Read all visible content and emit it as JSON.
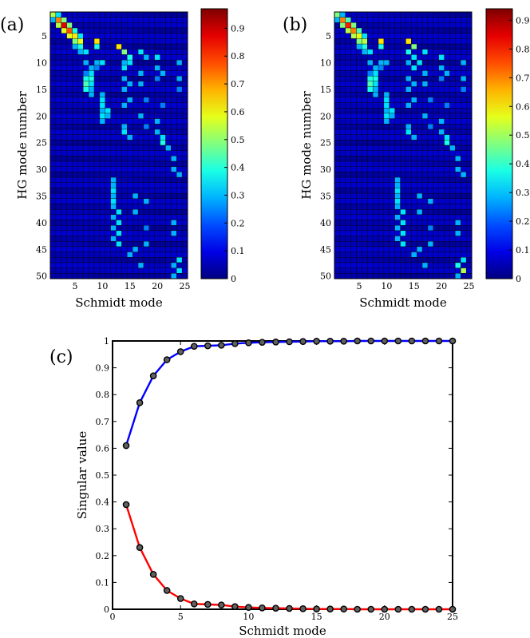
{
  "panels": {
    "a": "(a)",
    "b": "(b)",
    "c": "(c)"
  },
  "chart_data": [
    {
      "type": "heatmap",
      "panel": "(a)",
      "xlabel": "Schmidt mode",
      "ylabel": "HG mode number",
      "x_ticks": [
        5,
        10,
        15,
        20,
        25
      ],
      "y_ticks": [
        5,
        10,
        15,
        20,
        25,
        30,
        35,
        40,
        45,
        50
      ],
      "rows": 50,
      "cols": 25,
      "colormap": "jet",
      "colorbar": {
        "min": 0,
        "max": 0.97,
        "ticks": [
          0,
          0.1,
          0.2,
          0.3,
          0.4,
          0.5,
          0.6,
          0.7,
          0.8,
          0.9
        ]
      },
      "cells": [
        [
          1,
          1,
          0.55
        ],
        [
          1,
          2,
          0.35
        ],
        [
          2,
          1,
          0.3
        ],
        [
          2,
          2,
          0.75
        ],
        [
          2,
          3,
          0.5
        ],
        [
          3,
          2,
          0.55
        ],
        [
          3,
          3,
          0.9
        ],
        [
          3,
          4,
          0.5
        ],
        [
          4,
          3,
          0.6
        ],
        [
          4,
          4,
          0.8
        ],
        [
          4,
          5,
          0.4
        ],
        [
          5,
          4,
          0.6
        ],
        [
          5,
          5,
          0.65
        ],
        [
          5,
          6,
          0.35
        ],
        [
          6,
          5,
          0.5
        ],
        [
          6,
          6,
          0.6
        ],
        [
          7,
          5,
          0.3
        ],
        [
          7,
          6,
          0.4
        ],
        [
          8,
          6,
          0.3
        ],
        [
          8,
          7,
          0.35
        ],
        [
          6,
          9,
          0.65
        ],
        [
          7,
          9,
          0.4
        ],
        [
          7,
          13,
          0.65
        ],
        [
          8,
          14,
          0.5
        ],
        [
          8,
          17,
          0.35
        ],
        [
          9,
          15,
          0.4
        ],
        [
          9,
          18,
          0.3
        ],
        [
          9,
          20,
          0.35
        ],
        [
          10,
          7,
          0.3
        ],
        [
          10,
          9,
          0.3
        ],
        [
          10,
          10,
          0.35
        ],
        [
          10,
          14,
          0.3
        ],
        [
          10,
          15,
          0.35
        ],
        [
          10,
          24,
          0.3
        ],
        [
          11,
          8,
          0.3
        ],
        [
          11,
          9,
          0.25
        ],
        [
          11,
          14,
          0.35
        ],
        [
          11,
          20,
          0.3
        ],
        [
          12,
          7,
          0.25
        ],
        [
          12,
          8,
          0.35
        ],
        [
          12,
          17,
          0.3
        ],
        [
          12,
          21,
          0.3
        ],
        [
          13,
          7,
          0.4
        ],
        [
          13,
          8,
          0.4
        ],
        [
          13,
          14,
          0.3
        ],
        [
          13,
          20,
          0.25
        ],
        [
          13,
          24,
          0.3
        ],
        [
          14,
          7,
          0.45
        ],
        [
          14,
          8,
          0.35
        ],
        [
          14,
          15,
          0.3
        ],
        [
          14,
          17,
          0.3
        ],
        [
          15,
          7,
          0.4
        ],
        [
          15,
          8,
          0.3
        ],
        [
          15,
          14,
          0.3
        ],
        [
          15,
          24,
          0.25
        ],
        [
          16,
          8,
          0.3
        ],
        [
          16,
          10,
          0.3
        ],
        [
          17,
          10,
          0.35
        ],
        [
          17,
          15,
          0.3
        ],
        [
          17,
          18,
          0.25
        ],
        [
          18,
          10,
          0.35
        ],
        [
          18,
          14,
          0.3
        ],
        [
          18,
          21,
          0.25
        ],
        [
          19,
          10,
          0.3
        ],
        [
          19,
          11,
          0.35
        ],
        [
          20,
          10,
          0.35
        ],
        [
          20,
          11,
          0.3
        ],
        [
          20,
          17,
          0.3
        ],
        [
          21,
          10,
          0.3
        ],
        [
          21,
          20,
          0.3
        ],
        [
          22,
          14,
          0.3
        ],
        [
          22,
          18,
          0.25
        ],
        [
          23,
          14,
          0.35
        ],
        [
          23,
          20,
          0.3
        ],
        [
          24,
          15,
          0.3
        ],
        [
          24,
          21,
          0.35
        ],
        [
          25,
          21,
          0.4
        ],
        [
          26,
          22,
          0.3
        ],
        [
          28,
          23,
          0.3
        ],
        [
          30,
          23,
          0.3
        ],
        [
          31,
          24,
          0.3
        ],
        [
          32,
          12,
          0.3
        ],
        [
          33,
          12,
          0.3
        ],
        [
          34,
          12,
          0.35
        ],
        [
          35,
          12,
          0.3
        ],
        [
          35,
          16,
          0.3
        ],
        [
          36,
          12,
          0.35
        ],
        [
          36,
          18,
          0.3
        ],
        [
          37,
          12,
          0.3
        ],
        [
          38,
          13,
          0.35
        ],
        [
          38,
          16,
          0.3
        ],
        [
          39,
          12,
          0.3
        ],
        [
          40,
          13,
          0.35
        ],
        [
          40,
          23,
          0.3
        ],
        [
          41,
          12,
          0.3
        ],
        [
          41,
          18,
          0.25
        ],
        [
          42,
          13,
          0.35
        ],
        [
          42,
          23,
          0.3
        ],
        [
          43,
          12,
          0.3
        ],
        [
          44,
          13,
          0.35
        ],
        [
          44,
          18,
          0.3
        ],
        [
          45,
          16,
          0.3
        ],
        [
          46,
          15,
          0.3
        ],
        [
          47,
          24,
          0.35
        ],
        [
          48,
          17,
          0.3
        ],
        [
          48,
          23,
          0.3
        ],
        [
          49,
          24,
          0.35
        ],
        [
          50,
          23,
          0.3
        ]
      ]
    },
    {
      "type": "heatmap",
      "panel": "(b)",
      "xlabel": "Schmidt mode",
      "ylabel": "HG mode number",
      "x_ticks": [
        5,
        10,
        15,
        20,
        25
      ],
      "y_ticks": [
        5,
        10,
        15,
        20,
        25,
        30,
        35,
        40,
        45,
        50
      ],
      "rows": 50,
      "cols": 25,
      "colormap": "jet",
      "colorbar": {
        "min": 0,
        "max": 0.94,
        "ticks": [
          0,
          0.1,
          0.2,
          0.3,
          0.4,
          0.5,
          0.6,
          0.7,
          0.8,
          0.9
        ]
      },
      "cells": [
        [
          1,
          1,
          0.5
        ],
        [
          1,
          2,
          0.3
        ],
        [
          2,
          1,
          0.3
        ],
        [
          2,
          2,
          0.75
        ],
        [
          2,
          3,
          0.45
        ],
        [
          3,
          2,
          0.5
        ],
        [
          3,
          3,
          0.85
        ],
        [
          3,
          4,
          0.5
        ],
        [
          4,
          3,
          0.55
        ],
        [
          4,
          4,
          0.75
        ],
        [
          4,
          5,
          0.45
        ],
        [
          5,
          4,
          0.55
        ],
        [
          5,
          5,
          0.6
        ],
        [
          5,
          6,
          0.35
        ],
        [
          6,
          5,
          0.5
        ],
        [
          6,
          6,
          0.55
        ],
        [
          7,
          5,
          0.3
        ],
        [
          7,
          6,
          0.4
        ],
        [
          8,
          6,
          0.3
        ],
        [
          8,
          7,
          0.35
        ],
        [
          6,
          9,
          0.65
        ],
        [
          7,
          9,
          0.4
        ],
        [
          6,
          14,
          0.65
        ],
        [
          7,
          15,
          0.5
        ],
        [
          8,
          14,
          0.4
        ],
        [
          8,
          17,
          0.35
        ],
        [
          9,
          15,
          0.35
        ],
        [
          9,
          20,
          0.35
        ],
        [
          10,
          7,
          0.3
        ],
        [
          10,
          9,
          0.3
        ],
        [
          10,
          10,
          0.3
        ],
        [
          10,
          14,
          0.3
        ],
        [
          10,
          16,
          0.35
        ],
        [
          10,
          24,
          0.3
        ],
        [
          11,
          8,
          0.3
        ],
        [
          11,
          9,
          0.25
        ],
        [
          11,
          15,
          0.35
        ],
        [
          11,
          20,
          0.3
        ],
        [
          12,
          7,
          0.25
        ],
        [
          12,
          8,
          0.35
        ],
        [
          12,
          17,
          0.3
        ],
        [
          12,
          21,
          0.3
        ],
        [
          13,
          7,
          0.4
        ],
        [
          13,
          8,
          0.4
        ],
        [
          13,
          14,
          0.3
        ],
        [
          13,
          20,
          0.25
        ],
        [
          13,
          24,
          0.3
        ],
        [
          14,
          7,
          0.45
        ],
        [
          14,
          8,
          0.35
        ],
        [
          14,
          15,
          0.3
        ],
        [
          14,
          17,
          0.3
        ],
        [
          15,
          7,
          0.4
        ],
        [
          15,
          8,
          0.3
        ],
        [
          15,
          14,
          0.3
        ],
        [
          15,
          24,
          0.25
        ],
        [
          16,
          8,
          0.3
        ],
        [
          16,
          10,
          0.3
        ],
        [
          17,
          10,
          0.35
        ],
        [
          17,
          15,
          0.3
        ],
        [
          17,
          18,
          0.25
        ],
        [
          18,
          10,
          0.35
        ],
        [
          18,
          14,
          0.3
        ],
        [
          18,
          21,
          0.25
        ],
        [
          19,
          10,
          0.3
        ],
        [
          19,
          11,
          0.35
        ],
        [
          20,
          10,
          0.35
        ],
        [
          20,
          11,
          0.3
        ],
        [
          20,
          17,
          0.3
        ],
        [
          21,
          10,
          0.3
        ],
        [
          21,
          20,
          0.3
        ],
        [
          22,
          14,
          0.3
        ],
        [
          22,
          18,
          0.25
        ],
        [
          23,
          14,
          0.35
        ],
        [
          23,
          20,
          0.3
        ],
        [
          24,
          15,
          0.3
        ],
        [
          24,
          21,
          0.35
        ],
        [
          25,
          21,
          0.4
        ],
        [
          26,
          22,
          0.3
        ],
        [
          28,
          23,
          0.3
        ],
        [
          30,
          23,
          0.3
        ],
        [
          31,
          24,
          0.3
        ],
        [
          32,
          12,
          0.3
        ],
        [
          33,
          12,
          0.3
        ],
        [
          34,
          12,
          0.35
        ],
        [
          35,
          12,
          0.3
        ],
        [
          35,
          16,
          0.3
        ],
        [
          36,
          12,
          0.35
        ],
        [
          36,
          18,
          0.3
        ],
        [
          37,
          12,
          0.3
        ],
        [
          38,
          13,
          0.35
        ],
        [
          38,
          16,
          0.3
        ],
        [
          39,
          12,
          0.3
        ],
        [
          40,
          13,
          0.35
        ],
        [
          40,
          23,
          0.3
        ],
        [
          41,
          12,
          0.3
        ],
        [
          41,
          18,
          0.25
        ],
        [
          42,
          13,
          0.35
        ],
        [
          42,
          23,
          0.3
        ],
        [
          43,
          12,
          0.3
        ],
        [
          44,
          13,
          0.35
        ],
        [
          44,
          18,
          0.3
        ],
        [
          45,
          16,
          0.3
        ],
        [
          46,
          15,
          0.3
        ],
        [
          47,
          24,
          0.35
        ],
        [
          48,
          17,
          0.3
        ],
        [
          48,
          23,
          0.4
        ],
        [
          49,
          24,
          0.55
        ],
        [
          50,
          23,
          0.3
        ]
      ]
    },
    {
      "type": "line",
      "panel": "(c)",
      "xlabel": "Schmidt mode",
      "ylabel": "Singular value",
      "xlim": [
        0,
        25
      ],
      "ylim": [
        0,
        1
      ],
      "x_ticks": [
        0,
        5,
        10,
        15,
        20,
        25
      ],
      "y_ticks": [
        0,
        0.1,
        0.2,
        0.3,
        0.4,
        0.5,
        0.6,
        0.7,
        0.8,
        0.9,
        1
      ],
      "x": [
        1,
        2,
        3,
        4,
        5,
        6,
        7,
        8,
        9,
        10,
        11,
        12,
        13,
        14,
        15,
        16,
        17,
        18,
        19,
        20,
        21,
        22,
        23,
        24,
        25
      ],
      "series": [
        {
          "color": "#0000ff",
          "values": [
            0.61,
            0.77,
            0.87,
            0.93,
            0.96,
            0.98,
            0.982,
            0.984,
            0.99,
            0.993,
            0.995,
            0.996,
            0.997,
            0.998,
            0.999,
            0.999,
            0.999,
            1,
            1,
            1,
            1,
            1,
            1,
            1,
            1
          ]
        },
        {
          "color": "#ff0000",
          "values": [
            0.39,
            0.23,
            0.13,
            0.07,
            0.04,
            0.02,
            0.018,
            0.016,
            0.01,
            0.007,
            0.005,
            0.004,
            0.003,
            0.002,
            0.001,
            0.001,
            0.001,
            0,
            0,
            0,
            0,
            0,
            0,
            0,
            0
          ]
        }
      ]
    }
  ]
}
